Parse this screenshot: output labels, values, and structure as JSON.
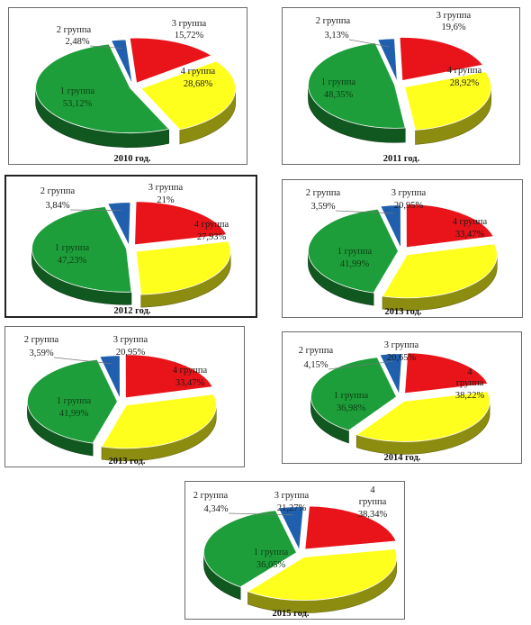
{
  "colors": {
    "g1": "#1e9e3a",
    "g2": "#1f5fae",
    "g3": "#e8141a",
    "g4": "#ffff1e"
  },
  "chart_data": [
    {
      "type": "pie",
      "caption": "2010 год.",
      "slices": [
        {
          "name": "1 группа",
          "value": 53.12,
          "label": "53,12%"
        },
        {
          "name": "2 группа",
          "value": 2.48,
          "label": "2,48%"
        },
        {
          "name": "3 группа",
          "value": 15.72,
          "label": "15,72%"
        },
        {
          "name": "4 группа",
          "value": 28.68,
          "label": "28,68%"
        }
      ]
    },
    {
      "type": "pie",
      "caption": "2011 год.",
      "slices": [
        {
          "name": "1 группа",
          "value": 48.35,
          "label": "48,35%"
        },
        {
          "name": "2 группа",
          "value": 3.13,
          "label": "3,13%"
        },
        {
          "name": "3 группа",
          "value": 19.6,
          "label": "19,6%"
        },
        {
          "name": "4 группа",
          "value": 28.92,
          "label": "28,92%"
        }
      ]
    },
    {
      "type": "pie",
      "caption": "2012 год.",
      "slices": [
        {
          "name": "1 группа",
          "value": 47.23,
          "label": "47,23%"
        },
        {
          "name": "2 группа",
          "value": 3.84,
          "label": "3,84%"
        },
        {
          "name": "3 группа",
          "value": 21,
          "label": "21%"
        },
        {
          "name": "4 группа",
          "value": 27.93,
          "label": "27,93%"
        }
      ]
    },
    {
      "type": "pie",
      "caption": "2013 год.",
      "slices": [
        {
          "name": "1 группа",
          "value": 41.99,
          "label": "41,99%"
        },
        {
          "name": "2 группа",
          "value": 3.59,
          "label": "3,59%"
        },
        {
          "name": "3 группа",
          "value": 20.95,
          "label": "20,95%"
        },
        {
          "name": "4 группа",
          "value": 33.47,
          "label": "33,47%"
        }
      ]
    },
    {
      "type": "pie",
      "caption": "2013 год.",
      "slices": [
        {
          "name": "1 группа",
          "value": 41.99,
          "label": "41,99%"
        },
        {
          "name": "2 группа",
          "value": 3.59,
          "label": "3,59%"
        },
        {
          "name": "3 группа",
          "value": 20.95,
          "label": "20,95%"
        },
        {
          "name": "4 группа",
          "value": 33.47,
          "label": "33,47%"
        }
      ]
    },
    {
      "type": "pie",
      "caption": "2014 год.",
      "slices": [
        {
          "name": "1 группа",
          "value": 36.98,
          "label": "36,98%"
        },
        {
          "name": "2 группа",
          "value": 4.15,
          "label": "4,15%"
        },
        {
          "name": "3 группа",
          "value": 20.65,
          "label": "20,65%"
        },
        {
          "name": "4 группа",
          "value": 38.22,
          "label": "38,22%"
        }
      ]
    },
    {
      "type": "pie",
      "caption": "2015 год.",
      "slices": [
        {
          "name": "1 группа",
          "value": 36.05,
          "label": "36,05%"
        },
        {
          "name": "2 группа",
          "value": 4.34,
          "label": "4,34%"
        },
        {
          "name": "3 группа",
          "value": 21.27,
          "label": "21,27%"
        },
        {
          "name": "4 группа",
          "value": 38.34,
          "label": "38,34%"
        }
      ]
    }
  ]
}
